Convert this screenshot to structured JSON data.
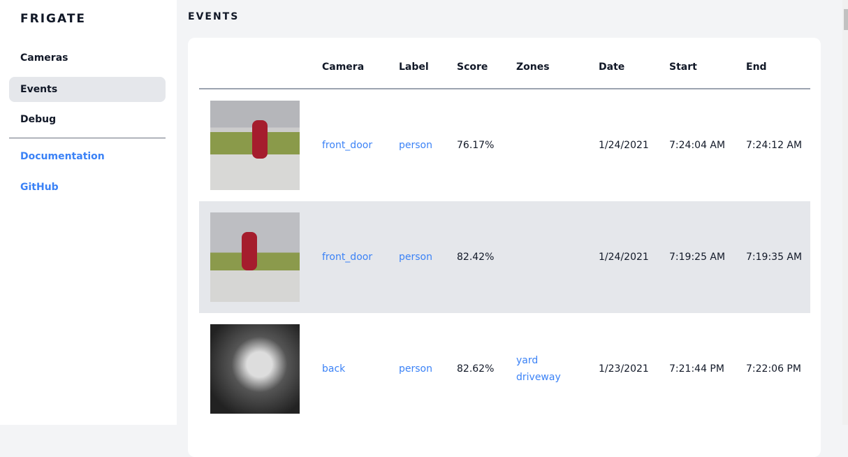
{
  "sidebar": {
    "brand": "FRIGATE",
    "items": [
      {
        "label": "Cameras"
      },
      {
        "label": "Events"
      },
      {
        "label": "Debug"
      }
    ],
    "links": [
      {
        "label": "Documentation"
      },
      {
        "label": "GitHub"
      }
    ]
  },
  "page": {
    "title": "EVENTS"
  },
  "table": {
    "headers": [
      "Camera",
      "Label",
      "Score",
      "Zones",
      "Date",
      "Start",
      "End"
    ],
    "rows": [
      {
        "camera": "front_door",
        "label": "person",
        "score": "76.17%",
        "zones": [
          "",
          ""
        ],
        "date": "1/24/2021",
        "start": "7:24:04 AM",
        "end": "7:24:12 AM"
      },
      {
        "camera": "front_door",
        "label": "person",
        "score": "82.42%",
        "zones": [
          "",
          ""
        ],
        "date": "1/24/2021",
        "start": "7:19:25 AM",
        "end": "7:19:35 AM"
      },
      {
        "camera": "back",
        "label": "person",
        "score": "82.62%",
        "zones": [
          "yard",
          "driveway"
        ],
        "date": "1/23/2021",
        "start": "7:21:44 PM",
        "end": "7:22:06 PM"
      }
    ]
  },
  "colors": {
    "link": "#3b82f6",
    "active": "#e5e7eb"
  }
}
